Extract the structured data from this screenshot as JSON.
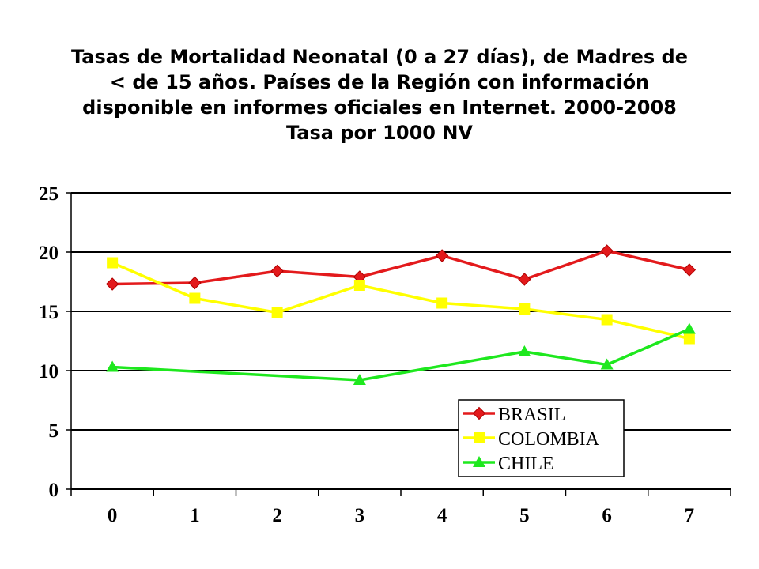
{
  "chart_data": {
    "type": "line",
    "title_lines": [
      "Tasas de Mortalidad Neonatal (0 a 27 días), de Madres de",
      "< de 15  años. Países de la Región con información",
      "disponible en informes oficiales en Internet. 2000-2008",
      "Tasa por 1000 NV"
    ],
    "categories": [
      "0",
      "1",
      "2",
      "3",
      "4",
      "5",
      "6",
      "7"
    ],
    "ylim": [
      0,
      25
    ],
    "yticks": [
      "0",
      "5",
      "10",
      "15",
      "20",
      "25"
    ],
    "grid": true,
    "legend_position": "bottom-right",
    "series": [
      {
        "name": "BRASIL",
        "color": "#e31a1c",
        "marker": "diamond",
        "points": [
          [
            0,
            17.3
          ],
          [
            1,
            17.4
          ],
          [
            2,
            18.4
          ],
          [
            3,
            17.9
          ],
          [
            4,
            19.7
          ],
          [
            5,
            17.7
          ],
          [
            6,
            20.1
          ],
          [
            7,
            18.5
          ]
        ]
      },
      {
        "name": "COLOMBIA",
        "color": "#ffff00",
        "marker": "square",
        "points": [
          [
            0,
            19.1
          ],
          [
            1,
            16.1
          ],
          [
            2,
            14.9
          ],
          [
            3,
            17.2
          ],
          [
            4,
            15.7
          ],
          [
            5,
            15.2
          ],
          [
            6,
            14.3
          ],
          [
            7,
            12.7
          ]
        ]
      },
      {
        "name": "CHILE",
        "color": "#1ee81e",
        "marker": "triangle",
        "points": [
          [
            0,
            10.3
          ],
          [
            3,
            9.2
          ],
          [
            5,
            11.6
          ],
          [
            6,
            10.5
          ],
          [
            7,
            13.5
          ]
        ]
      }
    ]
  }
}
